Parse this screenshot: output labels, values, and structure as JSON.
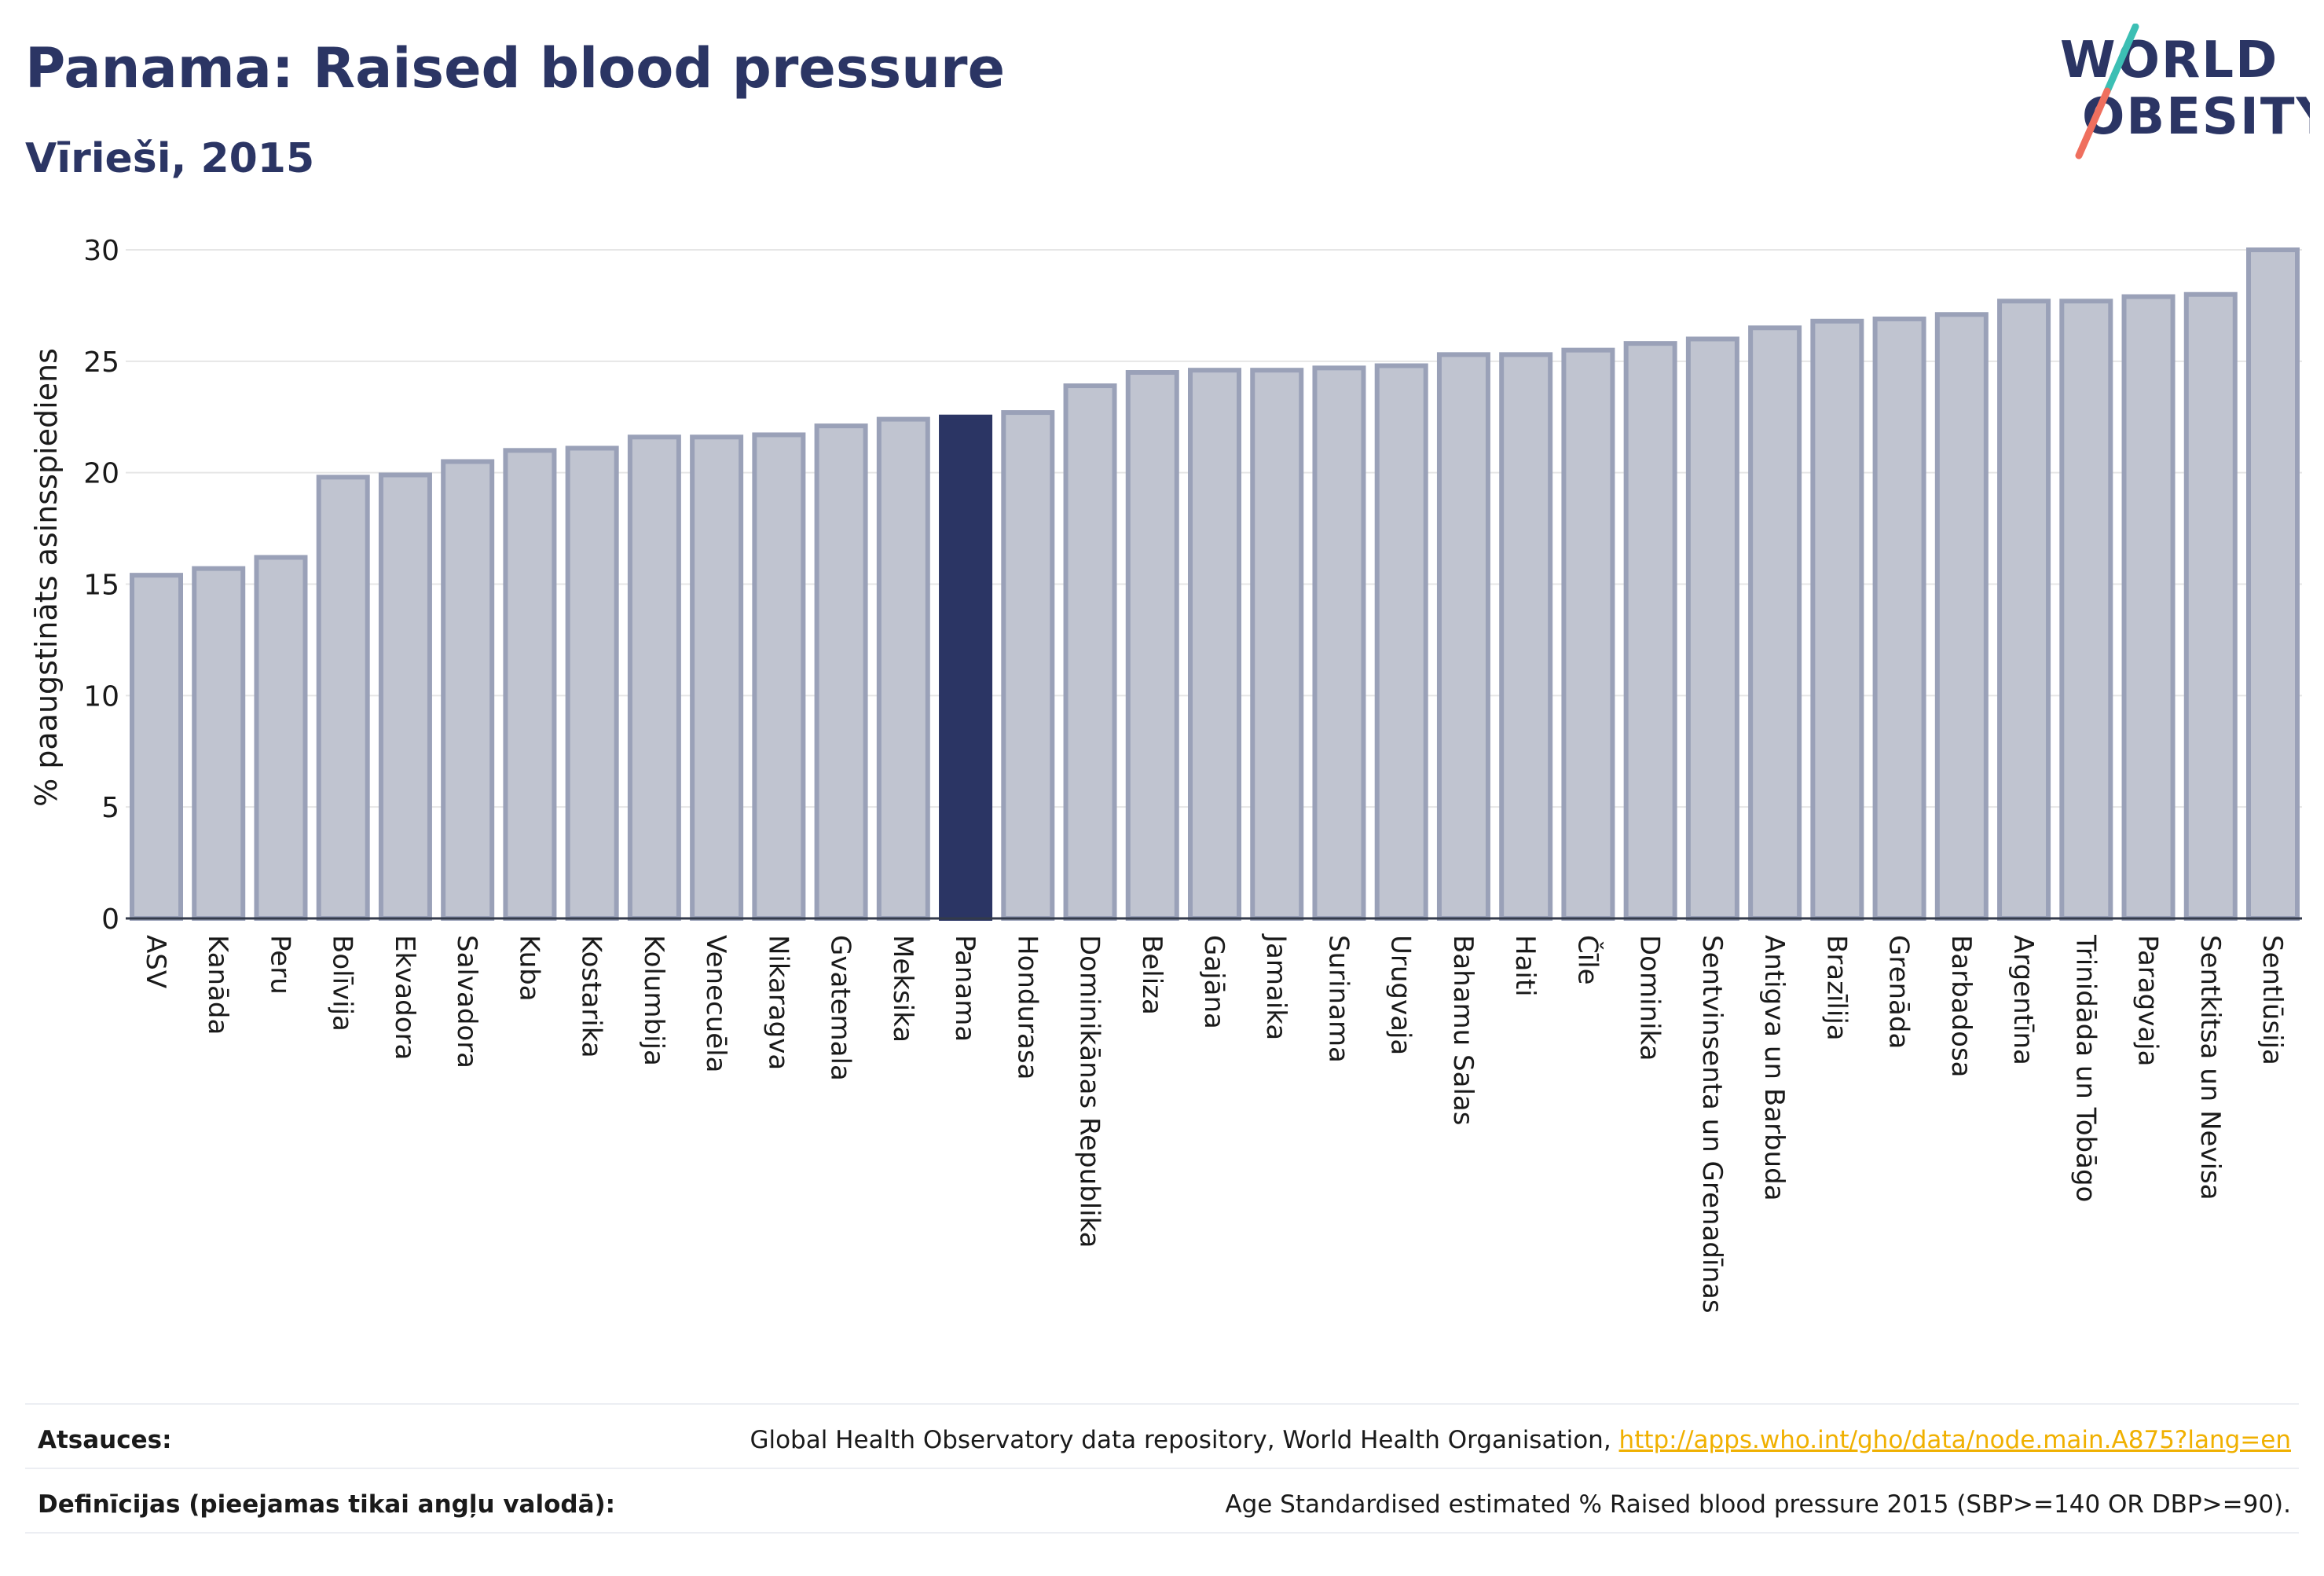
{
  "header": {
    "title": "Panama: Raised blood pressure",
    "subtitle": "Vīrieši, 2015"
  },
  "logo": {
    "line1": "WORLD",
    "line2": "OBESITY"
  },
  "colors": {
    "bar_default_fill": "#c0c4d0",
    "bar_default_stroke": "#9aa1b8",
    "bar_highlight": "#2b3564",
    "title": "#2b3564",
    "grid": "#e6e6e6",
    "link": "#f0b000"
  },
  "chart_data": {
    "type": "bar",
    "ylabel": "% paaugstināts asinsspiediens",
    "ylim": [
      0,
      30
    ],
    "yticks": [
      0,
      5,
      10,
      15,
      20,
      25,
      30
    ],
    "highlight": "Panama",
    "categories": [
      "ASV",
      "Kanāda",
      "Peru",
      "Bolīvija",
      "Ekvadora",
      "Salvadora",
      "Kuba",
      "Kostarika",
      "Kolumbija",
      "Venecuēla",
      "Nikaragva",
      "Gvatemala",
      "Meksika",
      "Panama",
      "Hondurasa",
      "Dominikānas Republika",
      "Beliza",
      "Gajāna",
      "Jamaika",
      "Surinama",
      "Urugvaja",
      "Bahamu Salas",
      "Haiti",
      "Čīle",
      "Dominika",
      "Sentvinsenta un Grenadīnas",
      "Antigva un Barbuda",
      "Brazīlija",
      "Grenāda",
      "Barbadosa",
      "Argentīna",
      "Trinidāda un Tobāgo",
      "Paragvaja",
      "Sentkitsa un Nevisa",
      "Sentlūsija"
    ],
    "values": [
      15.4,
      15.7,
      16.2,
      19.8,
      19.9,
      20.5,
      21.0,
      21.1,
      21.6,
      21.6,
      21.7,
      22.1,
      22.4,
      22.5,
      22.7,
      23.9,
      24.5,
      24.6,
      24.6,
      24.7,
      24.8,
      25.3,
      25.3,
      25.5,
      25.8,
      26.0,
      26.5,
      26.8,
      26.9,
      27.1,
      27.7,
      27.7,
      27.9,
      28.0,
      30.0
    ]
  },
  "footer": {
    "sources_label": "Atsauces:",
    "sources_text": "Global Health Observatory data repository, World Health Organisation, ",
    "sources_link": "http://apps.who.int/gho/data/node.main.A875?lang=en",
    "definitions_label": "Definīcijas (pieejamas tikai angļu valodā):",
    "definitions_text": "Age Standardised estimated % Raised blood pressure 2015 (SBP>=140 OR DBP>=90)."
  }
}
